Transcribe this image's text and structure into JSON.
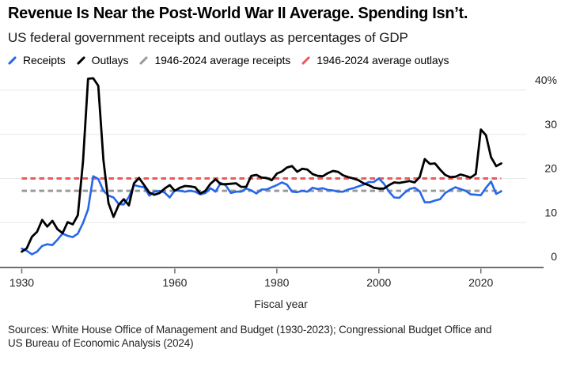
{
  "header": {
    "title": "Revenue Is Near the Post-World War II Average. Spending Isn’t.",
    "subtitle": "US federal government receipts and outlays as percentages of GDP"
  },
  "legend": {
    "position": "top",
    "items": [
      {
        "label": "Receipts",
        "color": "#2667ec",
        "style": "solid"
      },
      {
        "label": "Outlays",
        "color": "#000000",
        "style": "solid"
      },
      {
        "label": "1946-2024 average receipts",
        "color": "#9a9a9a",
        "style": "dashed"
      },
      {
        "label": "1946-2024 average outlays",
        "color": "#ee5a5a",
        "style": "dashed"
      }
    ]
  },
  "chart_data": {
    "type": "line",
    "title": "Revenue Is Near the Post-World War II Average. Spending Isn’t.",
    "subtitle": "US federal government receipts and outlays as percentages of GDP",
    "xlabel": "Fiscal year",
    "ylabel": "",
    "xlim": [
      1930,
      2024
    ],
    "ylim": [
      0,
      44
    ],
    "grid": true,
    "x_ticks": [
      1930,
      1960,
      1980,
      2000,
      2020
    ],
    "y_ticks": [
      0,
      10,
      20,
      30,
      40
    ],
    "y_tick_labels": [
      "0",
      "10",
      "20",
      "30",
      "40%"
    ],
    "x_start_year": 1930,
    "series": [
      {
        "name": "Receipts",
        "color": "#2667ec",
        "width": 2.6,
        "values": [
          4.1,
          3.6,
          2.8,
          3.4,
          4.7,
          5.1,
          4.9,
          6.1,
          7.5,
          7.0,
          6.7,
          7.5,
          9.9,
          13.0,
          20.5,
          19.9,
          17.2,
          16.1,
          15.7,
          14.2,
          14.1,
          15.8,
          18.5,
          18.2,
          18.0,
          16.1,
          17.0,
          17.2,
          16.8,
          15.7,
          17.3,
          17.2,
          17.0,
          17.2,
          17.0,
          16.4,
          16.7,
          17.8,
          17.0,
          19.0,
          18.4,
          16.7,
          17.0,
          17.0,
          17.7,
          17.3,
          16.6,
          17.5,
          17.5,
          18.0,
          18.5,
          19.1,
          18.6,
          17.0,
          16.9,
          17.2,
          17.0,
          17.9,
          17.6,
          17.8,
          17.4,
          17.3,
          17.0,
          17.0,
          17.5,
          17.8,
          18.2,
          18.6,
          19.2,
          19.2,
          20.0,
          18.8,
          17.0,
          15.7,
          15.6,
          16.7,
          17.6,
          17.9,
          17.1,
          14.6,
          14.6,
          15.0,
          15.3,
          16.7,
          17.4,
          18.0,
          17.6,
          17.2,
          16.4,
          16.3,
          16.2,
          17.9,
          19.3,
          16.5,
          17.1
        ]
      },
      {
        "name": "Outlays",
        "color": "#000000",
        "width": 2.8,
        "values": [
          3.4,
          4.2,
          6.8,
          7.9,
          10.6,
          9.1,
          10.4,
          8.5,
          7.6,
          10.1,
          9.6,
          11.7,
          23.8,
          42.6,
          42.7,
          41.0,
          24.2,
          14.4,
          11.3,
          14.0,
          15.3,
          13.9,
          18.9,
          20.1,
          18.5,
          16.8,
          16.3,
          16.7,
          17.7,
          18.5,
          17.2,
          17.9,
          18.3,
          18.2,
          18.0,
          16.6,
          17.2,
          18.8,
          19.8,
          18.7,
          18.7,
          18.8,
          18.9,
          18.1,
          18.1,
          20.6,
          20.8,
          20.2,
          20.1,
          19.6,
          21.1,
          21.6,
          22.5,
          22.8,
          21.5,
          22.2,
          22.0,
          21.0,
          20.6,
          20.5,
          21.2,
          21.7,
          21.5,
          20.7,
          20.3,
          20.0,
          19.6,
          18.9,
          18.5,
          17.9,
          17.7,
          17.7,
          18.5,
          19.1,
          19.0,
          19.2,
          19.4,
          19.1,
          20.3,
          24.4,
          23.3,
          23.4,
          22.0,
          20.8,
          20.3,
          20.4,
          20.9,
          20.6,
          20.2,
          21.0,
          31.1,
          29.8,
          24.8,
          22.8,
          23.4
        ]
      }
    ],
    "reference_lines": [
      {
        "name": "1946-2024 average receipts",
        "value": 17.2,
        "color": "#9a9a9a"
      },
      {
        "name": "1946-2024 average outlays",
        "value": 20.0,
        "color": "#ee5a5a"
      }
    ]
  },
  "footer": {
    "sources_lines": [
      "Sources: White House Office of Management and Budget (1930-2023); Congressional Budget Office and",
      "US Bureau of Economic Analysis (2024)"
    ]
  },
  "colors": {
    "gridline": "#e8e8e8",
    "axis": "#6f6f6f",
    "tick_text": "#222222"
  }
}
